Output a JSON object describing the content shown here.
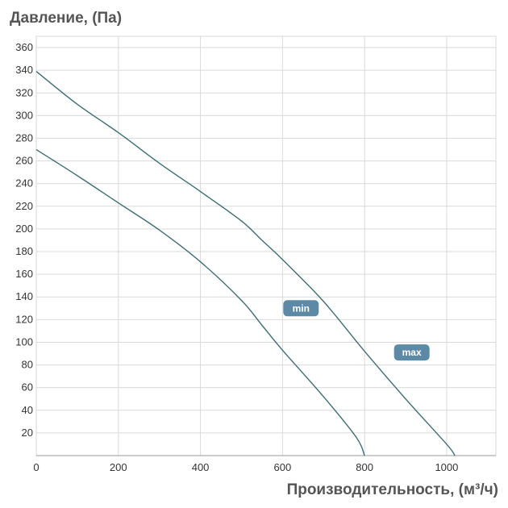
{
  "chart_data": {
    "type": "line",
    "ylabel": "Давление, (Па)",
    "xlabel": "Производительность, (м³/ч)",
    "xlim": [
      0,
      1120
    ],
    "ylim": [
      0,
      370
    ],
    "x_ticks": [
      0,
      200,
      400,
      600,
      800,
      1000
    ],
    "y_ticks": [
      20,
      40,
      60,
      80,
      100,
      120,
      140,
      160,
      180,
      200,
      220,
      240,
      260,
      280,
      300,
      320,
      340,
      360
    ],
    "grid": true,
    "series": [
      {
        "name": "max",
        "x": [
          0,
          100,
          200,
          300,
          400,
          500,
          550,
          600,
          700,
          800,
          900,
          1000,
          1020
        ],
        "y": [
          339,
          310,
          285,
          258,
          233,
          207,
          190,
          173,
          136,
          92,
          50,
          10,
          0
        ]
      },
      {
        "name": "min",
        "x": [
          0,
          100,
          200,
          300,
          400,
          500,
          550,
          600,
          700,
          780,
          800
        ],
        "y": [
          270,
          247,
          223,
          199,
          171,
          137,
          115,
          93,
          52,
          16,
          0
        ]
      }
    ],
    "labels": [
      {
        "series": "min",
        "text": "min",
        "x": 645,
        "y": 130
      },
      {
        "series": "max",
        "text": "max",
        "x": 915,
        "y": 91
      }
    ]
  }
}
